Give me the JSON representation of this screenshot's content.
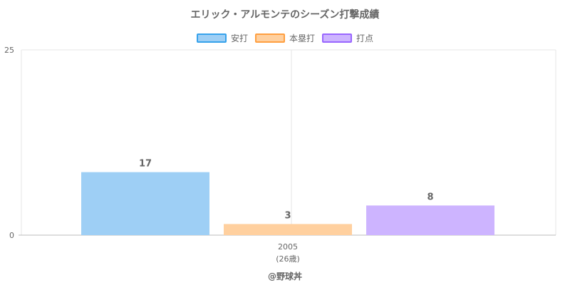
{
  "chart_data": {
    "type": "bar",
    "title": "エリック・アルモンテのシーズン打撃成績",
    "categories": [
      "2005"
    ],
    "category_sublabels": [
      "(26歳)"
    ],
    "series": [
      {
        "name": "安打",
        "values": [
          17
        ],
        "fill": "#9ecff5",
        "stroke": "#36a2eb"
      },
      {
        "name": "本塁打",
        "values": [
          3
        ],
        "fill": "#ffd09f",
        "stroke": "#ff9f40"
      },
      {
        "name": "打点",
        "values": [
          8
        ],
        "fill": "#cdb4ff",
        "stroke": "#9966ff"
      }
    ],
    "y_ticks": [
      0,
      25
    ],
    "ylim": [
      0,
      50
    ],
    "grid": true,
    "legend_position": "top"
  },
  "footer": "@野球丼"
}
